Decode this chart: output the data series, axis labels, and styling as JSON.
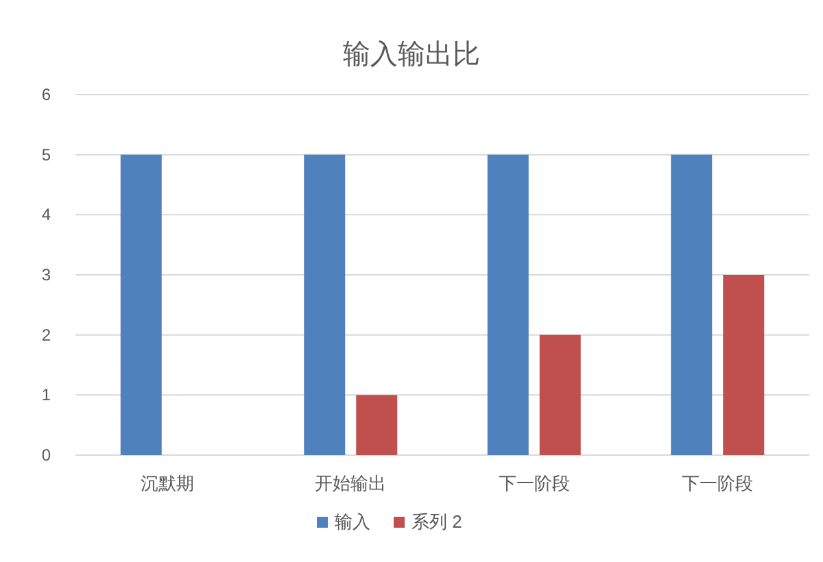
{
  "chart_data": {
    "type": "bar",
    "title": "输入输出比",
    "categories": [
      "沉默期",
      "开始输出",
      "下一阶段",
      "下一阶段"
    ],
    "series": [
      {
        "name": "输入",
        "color": "#4f81bd",
        "values": [
          5,
          5,
          5,
          5
        ]
      },
      {
        "name": "系列 2",
        "color": "#c0504d",
        "values": [
          null,
          1,
          2,
          3
        ]
      }
    ],
    "ylim": [
      0,
      6
    ],
    "yticks": [
      0,
      1,
      2,
      3,
      4,
      5,
      6
    ],
    "grid": "y",
    "legend": "bottom"
  }
}
